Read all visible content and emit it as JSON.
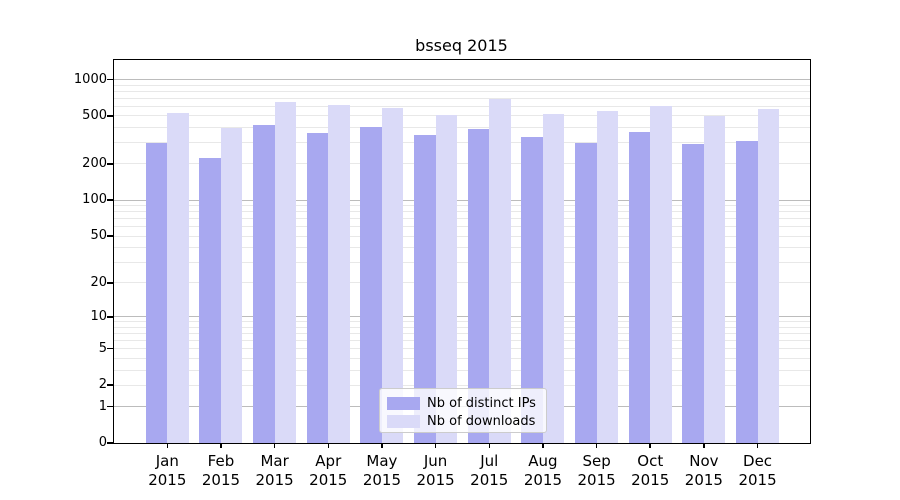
{
  "title": "bsseq 2015",
  "chart_data": {
    "type": "bar",
    "title": "bsseq 2015",
    "categories": [
      "Jan",
      "Feb",
      "Mar",
      "Apr",
      "May",
      "Jun",
      "Jul",
      "Aug",
      "Sep",
      "Oct",
      "Nov",
      "Dec"
    ],
    "year": "2015",
    "series": [
      {
        "name": "Nb of distinct IPs",
        "color": "#a8a8f0",
        "values": [
          300,
          225,
          420,
          360,
          405,
          350,
          390,
          335,
          300,
          365,
          295,
          308
        ]
      },
      {
        "name": "Nb of downloads",
        "color": "#dadaf8",
        "values": [
          530,
          395,
          655,
          615,
          585,
          510,
          685,
          520,
          545,
          600,
          500,
          575
        ]
      }
    ],
    "y_scale": "log1p",
    "y_ticks": [
      0,
      1,
      2,
      5,
      10,
      20,
      50,
      100,
      200,
      500,
      1000
    ],
    "y_minor_gridlines": [
      2,
      3,
      4,
      5,
      6,
      7,
      8,
      9,
      20,
      30,
      40,
      50,
      60,
      70,
      80,
      90,
      200,
      300,
      400,
      500,
      600,
      700,
      800,
      900
    ],
    "y_major_gridlines": [
      1,
      10,
      100,
      1000
    ],
    "ylim": [
      0,
      1400
    ],
    "xlabel": "",
    "ylabel": "",
    "grid": true,
    "legend_position": "lower center",
    "background_color": "#ffffff",
    "spine_color": "#000000"
  }
}
